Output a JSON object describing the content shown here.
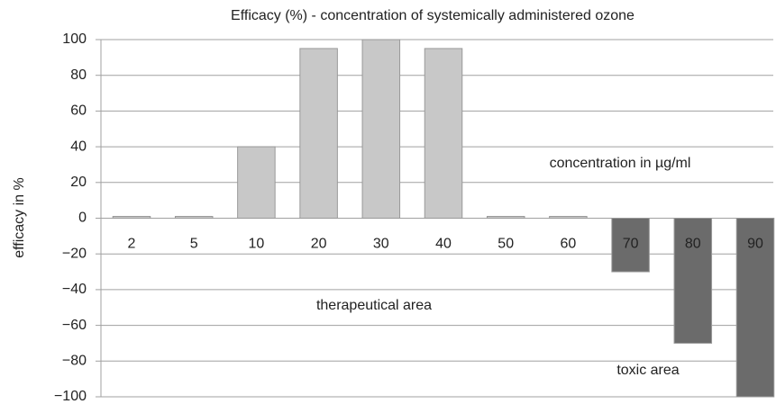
{
  "chart_data": {
    "type": "bar",
    "title": "Efficacy (%) - concentration of systemically administered ozone",
    "y_label": "efficacy in %",
    "annotations": [
      "concentration in µg/ml",
      "therapeutical area",
      "toxic area"
    ],
    "categories": [
      "2",
      "5",
      "10",
      "20",
      "30",
      "40",
      "50",
      "60",
      "70",
      "80",
      "90"
    ],
    "values": [
      0,
      0,
      40,
      95,
      100,
      95,
      0,
      0,
      -30,
      -70,
      -100
    ],
    "colors": [
      "#c8c8c8",
      "#c8c8c8",
      "#c8c8c8",
      "#c8c8c8",
      "#c8c8c8",
      "#c8c8c8",
      "#c8c8c8",
      "#c8c8c8",
      "#6b6b6b",
      "#6b6b6b",
      "#6b6b6b"
    ],
    "ylim": [
      -100,
      100
    ],
    "yticks": [
      {
        "value": -100,
        "label": "−100"
      },
      {
        "value": -80,
        "label": "−80"
      },
      {
        "value": -60,
        "label": "−60"
      },
      {
        "value": -40,
        "label": "−40"
      },
      {
        "value": -20,
        "label": "−20"
      },
      0,
      20,
      40,
      60,
      80,
      100
    ],
    "grid": true
  }
}
